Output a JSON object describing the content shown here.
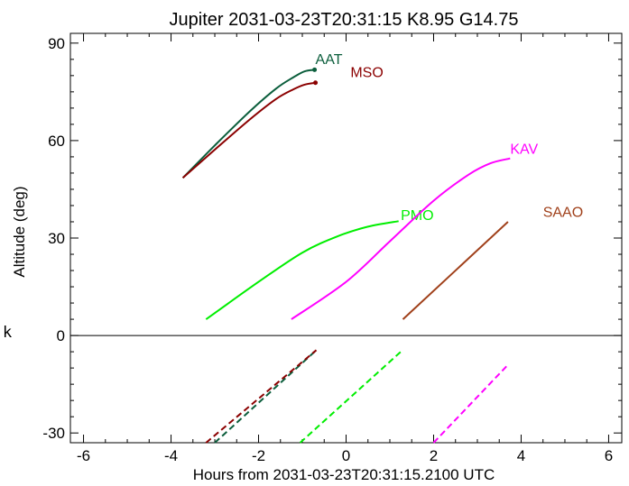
{
  "chart_data": {
    "type": "line",
    "title": "Jupiter 2031-03-23T20:31:15  K8.95  G14.75",
    "xlabel": "Hours from 2031-03-23T20:31:15.2100 UTC",
    "ylabel": "Altitude (deg)",
    "side_label": "k",
    "xlim": [
      -6.3,
      6.3
    ],
    "ylim": [
      -33,
      93
    ],
    "xticks": [
      -6,
      -4,
      -2,
      0,
      2,
      4,
      6
    ],
    "xtick_labels": [
      "-6",
      "-4",
      "-2",
      "0",
      "2",
      "4",
      "6"
    ],
    "yticks": [
      -30,
      0,
      30,
      60,
      90
    ],
    "ytick_labels": [
      "-30",
      "0",
      "30",
      "60",
      "90"
    ],
    "horizon_line": 0,
    "grid": false,
    "legend": "inline labels at curve ends",
    "series": [
      {
        "name": "AAT",
        "color": "#0b5e3c",
        "label_at": [
          -0.7,
          83.5
        ],
        "points": [
          [
            -3.73,
            48.5
          ],
          [
            -3.0,
            58.5
          ],
          [
            -2.2,
            69
          ],
          [
            -1.6,
            76
          ],
          [
            -1.2,
            79.5
          ],
          [
            -0.95,
            81.3
          ],
          [
            -0.72,
            81.8
          ]
        ],
        "marker_at": [
          -0.72,
          81.8
        ],
        "below": [
          [
            -3.0,
            -33
          ],
          [
            -0.68,
            -4.5
          ]
        ]
      },
      {
        "name": "MSO",
        "color": "#8b0000",
        "label_at": [
          0.1,
          79.5
        ],
        "points": [
          [
            -3.73,
            48.5
          ],
          [
            -3.0,
            57.2
          ],
          [
            -2.2,
            66.5
          ],
          [
            -1.6,
            72.8
          ],
          [
            -1.2,
            75.8
          ],
          [
            -0.95,
            77.2
          ],
          [
            -0.7,
            77.8
          ]
        ],
        "marker_at": [
          -0.7,
          77.8
        ],
        "below": [
          [
            -3.2,
            -33
          ],
          [
            -0.68,
            -4.5
          ]
        ]
      },
      {
        "name": "PMO",
        "color": "#00ee00",
        "label_at": [
          1.25,
          35.5
        ],
        "points": [
          [
            -3.2,
            5
          ],
          [
            -2.0,
            16.5
          ],
          [
            -1.0,
            25.5
          ],
          [
            -0.2,
            30.5
          ],
          [
            0.5,
            33.5
          ],
          [
            1.2,
            35.2
          ]
        ],
        "below": [
          [
            -1.05,
            -33
          ],
          [
            1.25,
            -5
          ]
        ]
      },
      {
        "name": "KAV",
        "color": "#ff00ff",
        "label_at": [
          3.75,
          56
        ],
        "points": [
          [
            -1.25,
            5
          ],
          [
            0,
            16.5
          ],
          [
            1.0,
            29
          ],
          [
            2.0,
            41.5
          ],
          [
            2.8,
            49.5
          ],
          [
            3.3,
            53
          ],
          [
            3.75,
            54.5
          ]
        ],
        "below": [
          [
            2.0,
            -33
          ],
          [
            3.7,
            -9
          ]
        ]
      },
      {
        "name": "SAAO",
        "color": "#a0401a",
        "label_at": [
          4.5,
          36.5
        ],
        "points": [
          [
            1.3,
            5
          ],
          [
            3.7,
            35
          ]
        ],
        "below": []
      }
    ]
  }
}
